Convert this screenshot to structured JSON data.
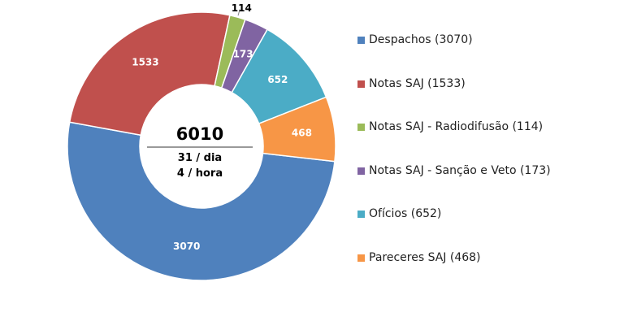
{
  "chart_data": {
    "type": "pie",
    "title": "",
    "center": {
      "total": "6010",
      "per_day": "31 / dia",
      "per_hour": "4 / hora"
    },
    "series": [
      {
        "name": "Despachos",
        "value": 3070,
        "label": "3070",
        "legend": "Despachos (3070)",
        "color": "#4F81BD",
        "label_color": "#ffffff"
      },
      {
        "name": "Notas SAJ",
        "value": 1533,
        "label": "1533",
        "legend": "Notas SAJ (1533)",
        "color": "#C0504D",
        "label_color": "#ffffff"
      },
      {
        "name": "Notas SAJ - Radiodifusão",
        "value": 114,
        "label": "114",
        "legend": "Notas SAJ - Radiodifusão (114)",
        "color": "#9BBB59",
        "label_color": "#000000"
      },
      {
        "name": "Notas SAJ - Sanção e Veto",
        "value": 173,
        "label": "173",
        "legend": "Notas SAJ - Sanção e Veto (173)",
        "color": "#8064A2",
        "label_color": "#ffffff"
      },
      {
        "name": "Ofícios",
        "value": 652,
        "label": "652",
        "legend": "Ofícios (652)",
        "color": "#4BACC6",
        "label_color": "#ffffff"
      },
      {
        "name": "Pareceres SAJ",
        "value": 468,
        "label": "468",
        "legend": "Pareceres SAJ (468)",
        "color": "#F79646",
        "label_color": "#ffffff"
      }
    ],
    "legend_position": "right"
  }
}
